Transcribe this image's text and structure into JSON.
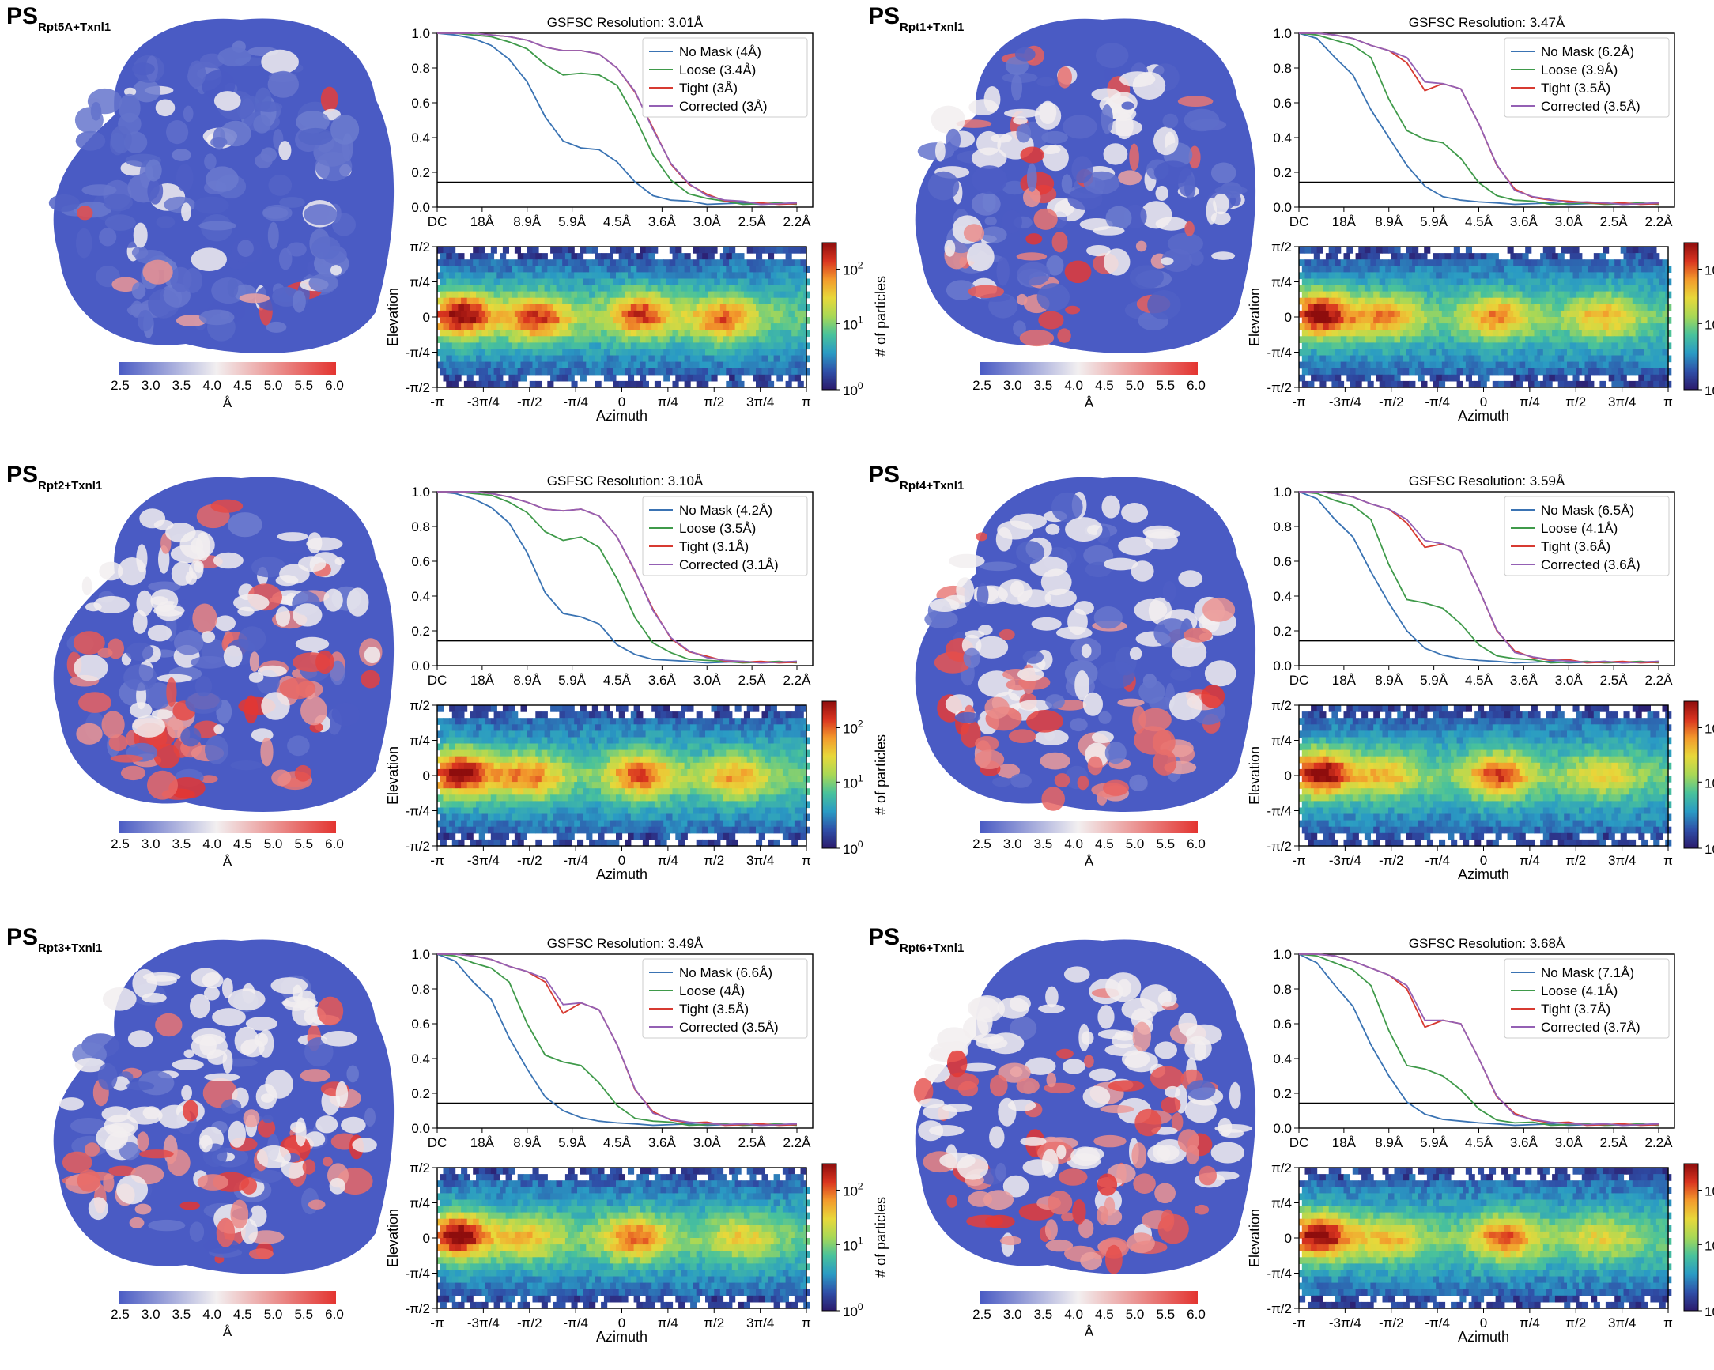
{
  "colors": {
    "no_mask": "#3a73b3",
    "loose": "#3f9a4a",
    "tight": "#d73a31",
    "corrected": "#9460b4",
    "map_low": "#4a5bc4",
    "map_mid": "#f2eff0",
    "map_high": "#e33430"
  },
  "shared": {
    "local_res_ticks": [
      "2.5",
      "3.0",
      "3.5",
      "4.0",
      "4.5",
      "5.0",
      "5.5",
      "6.0"
    ],
    "local_res_unit": "Å",
    "fsc_xticks": [
      "DC",
      "18Å",
      "8.9Å",
      "5.9Å",
      "4.5Å",
      "3.6Å",
      "3.0Å",
      "2.5Å",
      "2.2Å"
    ],
    "fsc_yticks": [
      "0.0",
      "0.2",
      "0.4",
      "0.6",
      "0.8",
      "1.0"
    ],
    "elevation_label": "Elevation",
    "azimuth_label": "Azimuth",
    "elev_ticks": [
      "π/2",
      "π/4",
      "0",
      "-π/4",
      "-π/2"
    ],
    "azim_ticks": [
      "-π",
      "-3π/4",
      "-π/2",
      "-π/4",
      "0",
      "π/4",
      "π/2",
      "3π/4",
      "π"
    ],
    "colorbar_label": "# of particles",
    "cb_ticks": [
      "10",
      "10",
      "10"
    ],
    "cb_exps": [
      "2",
      "1",
      "0"
    ]
  },
  "chart_data": [
    {
      "type": "line",
      "panel": "PS Rpt5A+Txnl1",
      "ps": "PS",
      "sub": "Rpt5A+Txnl1",
      "title": "GSFSC Resolution: 3.01Å",
      "legend": [
        "No Mask (4Å)",
        "Loose (3.4Å)",
        "Tight (3Å)",
        "Corrected (3Å)"
      ],
      "ylim": [
        0,
        1
      ],
      "threshold": 0.143,
      "x": [
        0,
        0.05,
        0.1,
        0.15,
        0.2,
        0.25,
        0.3,
        0.35,
        0.4,
        0.45,
        0.5,
        0.55,
        0.6,
        0.65,
        0.7,
        0.75,
        0.8,
        0.85,
        0.9,
        0.95,
        1.0
      ],
      "series": [
        {
          "name": "No Mask (4Å)",
          "values": [
            1.0,
            0.99,
            0.97,
            0.93,
            0.85,
            0.72,
            0.52,
            0.38,
            0.34,
            0.33,
            0.26,
            0.14,
            0.07,
            0.04,
            0.03,
            0.02,
            0.02,
            0.02,
            0.02,
            0.02,
            0.02
          ]
        },
        {
          "name": "Loose (3.4Å)",
          "values": [
            1.0,
            1.0,
            0.99,
            0.98,
            0.95,
            0.91,
            0.82,
            0.76,
            0.77,
            0.76,
            0.7,
            0.52,
            0.3,
            0.15,
            0.08,
            0.05,
            0.03,
            0.02,
            0.02,
            0.02,
            0.02
          ]
        },
        {
          "name": "Tight (3Å)",
          "values": [
            1.0,
            1.0,
            1.0,
            0.99,
            0.98,
            0.96,
            0.92,
            0.9,
            0.9,
            0.88,
            0.8,
            0.66,
            0.45,
            0.25,
            0.13,
            0.07,
            0.04,
            0.03,
            0.02,
            0.02,
            0.02
          ]
        },
        {
          "name": "Corrected (3Å)",
          "values": [
            1.0,
            1.0,
            1.0,
            0.99,
            0.98,
            0.96,
            0.92,
            0.9,
            0.9,
            0.88,
            0.8,
            0.66,
            0.45,
            0.25,
            0.13,
            0.07,
            0.04,
            0.03,
            0.02,
            0.02,
            0.02
          ]
        }
      ],
      "hexbin_hotspots": [
        {
          "az": -2.75,
          "el": 0.05,
          "level": 1.0
        },
        {
          "az": -1.45,
          "el": -0.05,
          "level": 0.8
        },
        {
          "az": 0.3,
          "el": 0.05,
          "level": 0.8
        },
        {
          "az": 1.7,
          "el": -0.05,
          "level": 0.7
        }
      ],
      "colorbar_range": [
        1,
        600
      ]
    },
    {
      "type": "line",
      "panel": "PS Rpt1+Txnl1",
      "ps": "PS",
      "sub": "Rpt1+Txnl1",
      "title": "GSFSC Resolution: 3.47Å",
      "legend": [
        "No Mask (6.2Å)",
        "Loose (3.9Å)",
        "Tight (3.5Å)",
        "Corrected (3.5Å)"
      ],
      "ylim": [
        0,
        1
      ],
      "threshold": 0.143,
      "x": [
        0,
        0.05,
        0.1,
        0.15,
        0.2,
        0.25,
        0.3,
        0.35,
        0.4,
        0.45,
        0.5,
        0.55,
        0.6,
        0.65,
        0.7,
        0.75,
        0.8,
        0.85,
        0.9,
        0.95,
        1.0
      ],
      "series": [
        {
          "name": "No Mask (6.2Å)",
          "values": [
            1.0,
            0.97,
            0.86,
            0.76,
            0.56,
            0.4,
            0.24,
            0.12,
            0.06,
            0.04,
            0.03,
            0.02,
            0.02,
            0.02,
            0.02,
            0.02,
            0.02,
            0.02,
            0.02,
            0.02,
            0.02
          ]
        },
        {
          "name": "Loose (3.9Å)",
          "values": [
            1.0,
            0.99,
            0.96,
            0.93,
            0.86,
            0.62,
            0.44,
            0.39,
            0.37,
            0.28,
            0.14,
            0.07,
            0.04,
            0.03,
            0.02,
            0.02,
            0.02,
            0.02,
            0.02,
            0.02,
            0.02
          ]
        },
        {
          "name": "Tight (3.5Å)",
          "values": [
            1.0,
            1.0,
            0.99,
            0.97,
            0.93,
            0.9,
            0.83,
            0.67,
            0.71,
            0.68,
            0.48,
            0.24,
            0.1,
            0.06,
            0.04,
            0.03,
            0.03,
            0.02,
            0.02,
            0.02,
            0.02
          ]
        },
        {
          "name": "Corrected (3.5Å)",
          "values": [
            1.0,
            1.0,
            0.99,
            0.97,
            0.93,
            0.9,
            0.86,
            0.72,
            0.71,
            0.68,
            0.48,
            0.24,
            0.1,
            0.06,
            0.04,
            0.03,
            0.03,
            0.02,
            0.02,
            0.02,
            0.02
          ]
        }
      ],
      "hexbin_hotspots": [
        {
          "az": -2.8,
          "el": 0.05,
          "level": 1.0
        },
        {
          "az": -1.7,
          "el": 0.0,
          "level": 0.6
        },
        {
          "az": 0.2,
          "el": 0.0,
          "level": 0.6
        },
        {
          "az": 2.0,
          "el": 0.0,
          "level": 0.5
        }
      ],
      "colorbar_range": [
        1,
        120
      ]
    },
    {
      "type": "line",
      "panel": "PS Rpt2+Txnl1",
      "ps": "PS",
      "sub": "Rpt2+Txnl1",
      "title": "GSFSC Resolution: 3.10Å",
      "legend": [
        "No Mask (4.2Å)",
        "Loose (3.5Å)",
        "Tight (3.1Å)",
        "Corrected (3.1Å)"
      ],
      "ylim": [
        0,
        1
      ],
      "threshold": 0.143,
      "x": [
        0,
        0.05,
        0.1,
        0.15,
        0.2,
        0.25,
        0.3,
        0.35,
        0.4,
        0.45,
        0.5,
        0.55,
        0.6,
        0.65,
        0.7,
        0.75,
        0.8,
        0.85,
        0.9,
        0.95,
        1.0
      ],
      "series": [
        {
          "name": "No Mask (4.2Å)",
          "values": [
            1.0,
            0.99,
            0.96,
            0.91,
            0.82,
            0.65,
            0.42,
            0.3,
            0.28,
            0.24,
            0.12,
            0.06,
            0.04,
            0.03,
            0.02,
            0.02,
            0.02,
            0.02,
            0.02,
            0.02,
            0.02
          ]
        },
        {
          "name": "Loose (3.5Å)",
          "values": [
            1.0,
            1.0,
            0.99,
            0.98,
            0.94,
            0.88,
            0.77,
            0.72,
            0.74,
            0.68,
            0.5,
            0.28,
            0.13,
            0.07,
            0.04,
            0.03,
            0.02,
            0.02,
            0.02,
            0.02,
            0.02
          ]
        },
        {
          "name": "Tight (3.1Å)",
          "values": [
            1.0,
            1.0,
            1.0,
            0.99,
            0.97,
            0.94,
            0.9,
            0.89,
            0.9,
            0.86,
            0.74,
            0.54,
            0.32,
            0.16,
            0.08,
            0.05,
            0.03,
            0.02,
            0.02,
            0.02,
            0.02
          ]
        },
        {
          "name": "Corrected (3.1Å)",
          "values": [
            1.0,
            1.0,
            1.0,
            0.99,
            0.97,
            0.94,
            0.9,
            0.89,
            0.9,
            0.86,
            0.74,
            0.54,
            0.32,
            0.16,
            0.08,
            0.05,
            0.03,
            0.02,
            0.02,
            0.02,
            0.02
          ]
        }
      ],
      "hexbin_hotspots": [
        {
          "az": -2.75,
          "el": 0.05,
          "level": 1.0
        },
        {
          "az": -1.6,
          "el": -0.05,
          "level": 0.65
        },
        {
          "az": 0.3,
          "el": 0.0,
          "level": 0.75
        },
        {
          "az": 1.9,
          "el": -0.05,
          "level": 0.55
        }
      ],
      "colorbar_range": [
        1,
        600
      ]
    },
    {
      "type": "line",
      "panel": "PS Rpt4+Txnl1",
      "ps": "PS",
      "sub": "Rpt4+Txnl1",
      "title": "GSFSC Resolution: 3.59Å",
      "legend": [
        "No Mask (6.5Å)",
        "Loose (4.1Å)",
        "Tight (3.6Å)",
        "Corrected (3.6Å)"
      ],
      "ylim": [
        0,
        1
      ],
      "threshold": 0.143,
      "x": [
        0,
        0.05,
        0.1,
        0.15,
        0.2,
        0.25,
        0.3,
        0.35,
        0.4,
        0.45,
        0.5,
        0.55,
        0.6,
        0.65,
        0.7,
        0.75,
        0.8,
        0.85,
        0.9,
        0.95,
        1.0
      ],
      "series": [
        {
          "name": "No Mask (6.5Å)",
          "values": [
            1.0,
            0.96,
            0.84,
            0.74,
            0.54,
            0.36,
            0.2,
            0.1,
            0.06,
            0.04,
            0.03,
            0.02,
            0.02,
            0.02,
            0.02,
            0.02,
            0.02,
            0.02,
            0.02,
            0.02,
            0.02
          ]
        },
        {
          "name": "Loose (4.1Å)",
          "values": [
            1.0,
            0.99,
            0.95,
            0.92,
            0.84,
            0.58,
            0.38,
            0.36,
            0.33,
            0.24,
            0.12,
            0.06,
            0.04,
            0.03,
            0.02,
            0.02,
            0.02,
            0.02,
            0.02,
            0.02,
            0.02
          ]
        },
        {
          "name": "Tight (3.6Å)",
          "values": [
            1.0,
            1.0,
            0.99,
            0.97,
            0.93,
            0.9,
            0.82,
            0.68,
            0.7,
            0.66,
            0.44,
            0.2,
            0.08,
            0.05,
            0.03,
            0.03,
            0.02,
            0.02,
            0.02,
            0.02,
            0.02
          ]
        },
        {
          "name": "Corrected (3.6Å)",
          "values": [
            1.0,
            1.0,
            0.99,
            0.97,
            0.93,
            0.9,
            0.84,
            0.72,
            0.7,
            0.66,
            0.44,
            0.2,
            0.08,
            0.05,
            0.03,
            0.03,
            0.02,
            0.02,
            0.02,
            0.02,
            0.02
          ]
        }
      ],
      "hexbin_hotspots": [
        {
          "az": -2.8,
          "el": 0.05,
          "level": 1.0
        },
        {
          "az": -1.7,
          "el": 0.0,
          "level": 0.45
        },
        {
          "az": 0.25,
          "el": 0.0,
          "level": 0.75
        },
        {
          "az": 2.0,
          "el": 0.0,
          "level": 0.4
        }
      ],
      "colorbar_range": [
        1,
        200
      ]
    },
    {
      "type": "line",
      "panel": "PS Rpt3+Txnl1",
      "ps": "PS",
      "sub": "Rpt3+Txnl1",
      "title": "GSFSC Resolution: 3.49Å",
      "legend": [
        "No Mask (6.6Å)",
        "Loose (4Å)",
        "Tight (3.5Å)",
        "Corrected (3.5Å)"
      ],
      "ylim": [
        0,
        1
      ],
      "threshold": 0.143,
      "x": [
        0,
        0.05,
        0.1,
        0.15,
        0.2,
        0.25,
        0.3,
        0.35,
        0.4,
        0.45,
        0.5,
        0.55,
        0.6,
        0.65,
        0.7,
        0.75,
        0.8,
        0.85,
        0.9,
        0.95,
        1.0
      ],
      "series": [
        {
          "name": "No Mask (6.6Å)",
          "values": [
            1.0,
            0.96,
            0.84,
            0.74,
            0.52,
            0.34,
            0.18,
            0.1,
            0.06,
            0.04,
            0.03,
            0.02,
            0.02,
            0.02,
            0.02,
            0.02,
            0.02,
            0.02,
            0.02,
            0.02,
            0.02
          ]
        },
        {
          "name": "Loose (4Å)",
          "values": [
            1.0,
            0.99,
            0.95,
            0.92,
            0.84,
            0.6,
            0.42,
            0.38,
            0.36,
            0.26,
            0.13,
            0.06,
            0.04,
            0.03,
            0.02,
            0.02,
            0.02,
            0.02,
            0.02,
            0.02,
            0.02
          ]
        },
        {
          "name": "Tight (3.5Å)",
          "values": [
            1.0,
            1.0,
            0.99,
            0.97,
            0.93,
            0.9,
            0.84,
            0.66,
            0.72,
            0.68,
            0.48,
            0.22,
            0.09,
            0.05,
            0.03,
            0.03,
            0.02,
            0.02,
            0.02,
            0.02,
            0.02
          ]
        },
        {
          "name": "Corrected (3.5Å)",
          "values": [
            1.0,
            1.0,
            0.99,
            0.97,
            0.93,
            0.9,
            0.86,
            0.71,
            0.72,
            0.68,
            0.48,
            0.22,
            0.09,
            0.05,
            0.03,
            0.03,
            0.02,
            0.02,
            0.02,
            0.02,
            0.02
          ]
        }
      ],
      "hexbin_hotspots": [
        {
          "az": -2.8,
          "el": 0.05,
          "level": 1.0
        },
        {
          "az": -1.6,
          "el": 0.0,
          "level": 0.45
        },
        {
          "az": 0.2,
          "el": 0.0,
          "level": 0.7
        },
        {
          "az": 2.0,
          "el": 0.0,
          "level": 0.4
        }
      ],
      "colorbar_range": [
        1,
        250
      ]
    },
    {
      "type": "line",
      "panel": "PS Rpt6+Txnl1",
      "ps": "PS",
      "sub": "Rpt6+Txnl1",
      "title": "GSFSC Resolution: 3.68Å",
      "legend": [
        "No Mask (7.1Å)",
        "Loose (4.1Å)",
        "Tight (3.7Å)",
        "Corrected (3.7Å)"
      ],
      "ylim": [
        0,
        1
      ],
      "threshold": 0.143,
      "x": [
        0,
        0.05,
        0.1,
        0.15,
        0.2,
        0.25,
        0.3,
        0.35,
        0.4,
        0.45,
        0.5,
        0.55,
        0.6,
        0.65,
        0.7,
        0.75,
        0.8,
        0.85,
        0.9,
        0.95,
        1.0
      ],
      "series": [
        {
          "name": "No Mask (7.1Å)",
          "values": [
            1.0,
            0.95,
            0.82,
            0.7,
            0.48,
            0.3,
            0.15,
            0.08,
            0.05,
            0.04,
            0.03,
            0.02,
            0.02,
            0.02,
            0.02,
            0.02,
            0.02,
            0.02,
            0.02,
            0.02,
            0.02
          ]
        },
        {
          "name": "Loose (4.1Å)",
          "values": [
            1.0,
            0.99,
            0.95,
            0.91,
            0.82,
            0.56,
            0.36,
            0.34,
            0.3,
            0.22,
            0.11,
            0.05,
            0.03,
            0.03,
            0.02,
            0.02,
            0.02,
            0.02,
            0.02,
            0.02,
            0.02
          ]
        },
        {
          "name": "Tight (3.7Å)",
          "values": [
            1.0,
            1.0,
            0.99,
            0.96,
            0.92,
            0.88,
            0.8,
            0.58,
            0.62,
            0.6,
            0.4,
            0.18,
            0.08,
            0.05,
            0.03,
            0.03,
            0.02,
            0.02,
            0.02,
            0.02,
            0.02
          ]
        },
        {
          "name": "Corrected (3.7Å)",
          "values": [
            1.0,
            1.0,
            0.99,
            0.96,
            0.92,
            0.88,
            0.82,
            0.62,
            0.62,
            0.6,
            0.4,
            0.18,
            0.08,
            0.05,
            0.03,
            0.03,
            0.02,
            0.02,
            0.02,
            0.02,
            0.02
          ]
        }
      ],
      "hexbin_hotspots": [
        {
          "az": -2.8,
          "el": 0.05,
          "level": 1.0
        },
        {
          "az": -1.6,
          "el": -0.05,
          "level": 0.45
        },
        {
          "az": 0.35,
          "el": 0.0,
          "level": 0.7
        },
        {
          "az": 2.0,
          "el": 0.0,
          "level": 0.35
        }
      ],
      "colorbar_range": [
        1,
        200
      ]
    }
  ]
}
